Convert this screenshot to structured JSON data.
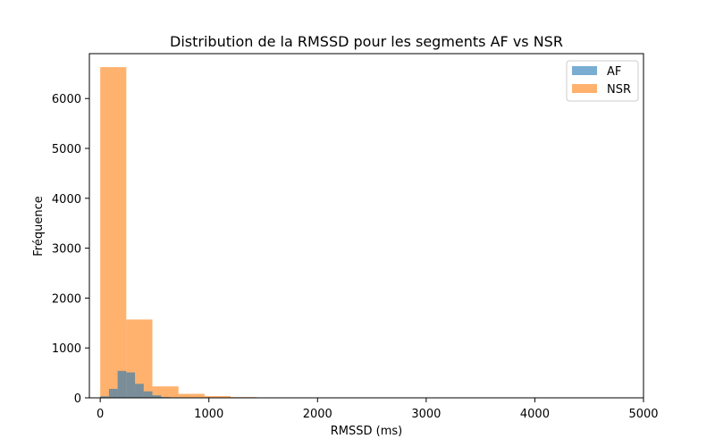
{
  "chart_data": {
    "type": "bar",
    "title": "Distribution de la RMSSD pour les segments AF vs NSR",
    "xlabel": "RMSSD (ms)",
    "ylabel": "Fréquence",
    "xlim": [
      -100,
      5000
    ],
    "ylim": [
      0,
      6900
    ],
    "xticks": [
      0,
      1000,
      2000,
      3000,
      4000,
      5000
    ],
    "yticks": [
      0,
      1000,
      2000,
      3000,
      4000,
      5000,
      6000
    ],
    "grid": false,
    "legend_position": "top-right",
    "series": [
      {
        "name": "AF",
        "color": "#1f77b4",
        "opacity": 0.6,
        "bins": [
          {
            "x0": 0,
            "x1": 80,
            "count": 30
          },
          {
            "x0": 80,
            "x1": 160,
            "count": 180
          },
          {
            "x0": 160,
            "x1": 240,
            "count": 540
          },
          {
            "x0": 240,
            "x1": 320,
            "count": 510
          },
          {
            "x0": 320,
            "x1": 400,
            "count": 280
          },
          {
            "x0": 400,
            "x1": 480,
            "count": 130
          },
          {
            "x0": 480,
            "x1": 560,
            "count": 50
          },
          {
            "x0": 560,
            "x1": 640,
            "count": 15
          },
          {
            "x0": 640,
            "x1": 720,
            "count": 5
          }
        ]
      },
      {
        "name": "NSR",
        "color": "#ff7f0e",
        "opacity": 0.6,
        "bins": [
          {
            "x0": 0,
            "x1": 240,
            "count": 6630
          },
          {
            "x0": 240,
            "x1": 480,
            "count": 1570
          },
          {
            "x0": 480,
            "x1": 720,
            "count": 230
          },
          {
            "x0": 720,
            "x1": 960,
            "count": 80
          },
          {
            "x0": 960,
            "x1": 1200,
            "count": 35
          },
          {
            "x0": 1200,
            "x1": 1440,
            "count": 15
          },
          {
            "x0": 1440,
            "x1": 1680,
            "count": 5
          },
          {
            "x0": 1680,
            "x1": 1920,
            "count": 3
          }
        ]
      }
    ]
  }
}
